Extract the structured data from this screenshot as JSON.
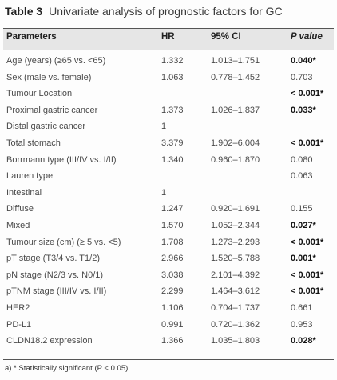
{
  "caption": {
    "label": "Table 3",
    "title": "Univariate analysis of prognostic factors for GC"
  },
  "headers": {
    "parameters": "Parameters",
    "hr": "HR",
    "ci": "95% CI",
    "p": "P value"
  },
  "rows": [
    {
      "param": "Age (years) (≥65 vs. <65)",
      "hr": "1.332",
      "ci": "1.013–1.751",
      "p": "0.040*",
      "sig": true
    },
    {
      "param": "Sex (male vs. female)",
      "hr": "1.063",
      "ci": "0.778–1.452",
      "p": "0.703",
      "sig": false
    },
    {
      "param": "Tumour Location",
      "hr": "",
      "ci": "",
      "p": "< 0.001*",
      "sig": true
    },
    {
      "param": "Proximal gastric cancer",
      "hr": "1.373",
      "ci": "1.026–1.837",
      "p": "0.033*",
      "sig": true
    },
    {
      "param": "Distal gastric cancer",
      "hr": "1",
      "ci": "",
      "p": "",
      "sig": false
    },
    {
      "param": "Total stomach",
      "hr": "3.379",
      "ci": "1.902–6.004",
      "p": "< 0.001*",
      "sig": true
    },
    {
      "param": "Borrmann type (III/IV vs. I/II)",
      "hr": "1.340",
      "ci": "0.960–1.870",
      "p": "0.080",
      "sig": false
    },
    {
      "param": "Lauren type",
      "hr": "",
      "ci": "",
      "p": "0.063",
      "sig": false
    },
    {
      "param": "Intestinal",
      "hr": "1",
      "ci": "",
      "p": "",
      "sig": false
    },
    {
      "param": "Diffuse",
      "hr": "1.247",
      "ci": "0.920–1.691",
      "p": "0.155",
      "sig": false
    },
    {
      "param": "Mixed",
      "hr": "1.570",
      "ci": "1.052–2.344",
      "p": "0.027*",
      "sig": true
    },
    {
      "param": "Tumour size (cm) (≥ 5 vs. <5)",
      "hr": "1.708",
      "ci": "1.273–2.293",
      "p": "< 0.001*",
      "sig": true
    },
    {
      "param": "pT stage (T3/4 vs. T1/2)",
      "hr": "2.966",
      "ci": "1.520–5.788",
      "p": "0.001*",
      "sig": true
    },
    {
      "param": "pN stage (N2/3 vs. N0/1)",
      "hr": "3.038",
      "ci": "2.101–4.392",
      "p": "< 0.001*",
      "sig": true
    },
    {
      "param": "pTNM stage (III/IV vs. I/II)",
      "hr": "2.299",
      "ci": "1.464–3.612",
      "p": "< 0.001*",
      "sig": true
    },
    {
      "param": "HER2",
      "hr": "1.106",
      "ci": "0.704–1.737",
      "p": "0.661",
      "sig": false
    },
    {
      "param": "PD-L1",
      "hr": "0.991",
      "ci": "0.720–1.362",
      "p": "0.953",
      "sig": false
    },
    {
      "param": "CLDN18.2 expression",
      "hr": "1.366",
      "ci": "1.035–1.803",
      "p": "0.028*",
      "sig": true
    }
  ],
  "footnote": "a) * Statistically significant (P < 0.05)"
}
